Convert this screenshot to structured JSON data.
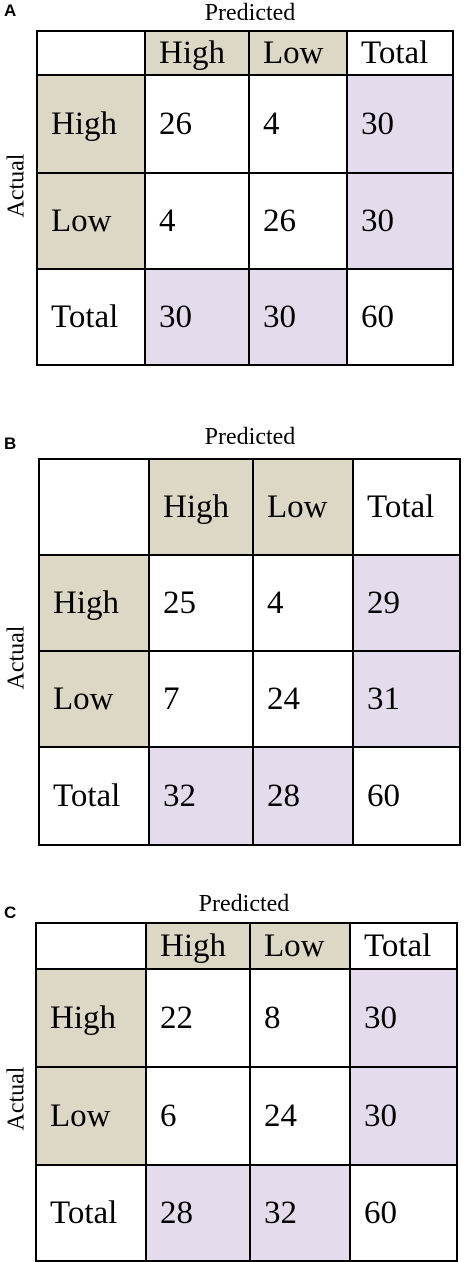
{
  "panels": [
    {
      "letter": "A",
      "predicted_label": "Predicted",
      "actual_label": "Actual",
      "col_headers": [
        "High",
        "Low",
        "Total"
      ],
      "rows": [
        {
          "label": "High",
          "values": [
            "26",
            "4",
            "30"
          ]
        },
        {
          "label": "Low",
          "values": [
            "4",
            "26",
            "30"
          ]
        },
        {
          "label": "Total",
          "values": [
            "30",
            "30",
            "60"
          ]
        }
      ]
    },
    {
      "letter": "B",
      "predicted_label": "Predicted",
      "actual_label": "Actual",
      "col_headers": [
        "High",
        "Low",
        "Total"
      ],
      "rows": [
        {
          "label": "High",
          "values": [
            "25",
            "4",
            "29"
          ]
        },
        {
          "label": "Low",
          "values": [
            "7",
            "24",
            "31"
          ]
        },
        {
          "label": "Total",
          "values": [
            "32",
            "28",
            "60"
          ]
        }
      ]
    },
    {
      "letter": "C",
      "predicted_label": "Predicted",
      "actual_label": "Actual",
      "col_headers": [
        "High",
        "Low",
        "Total"
      ],
      "rows": [
        {
          "label": "High",
          "values": [
            "22",
            "8",
            "30"
          ]
        },
        {
          "label": "Low",
          "values": [
            "6",
            "24",
            "30"
          ]
        },
        {
          "label": "Total",
          "values": [
            "28",
            "32",
            "60"
          ]
        }
      ]
    }
  ],
  "colors": {
    "header_fill": "#ddd8c5",
    "total_fill": "#e4dcec",
    "border": "#000000"
  }
}
